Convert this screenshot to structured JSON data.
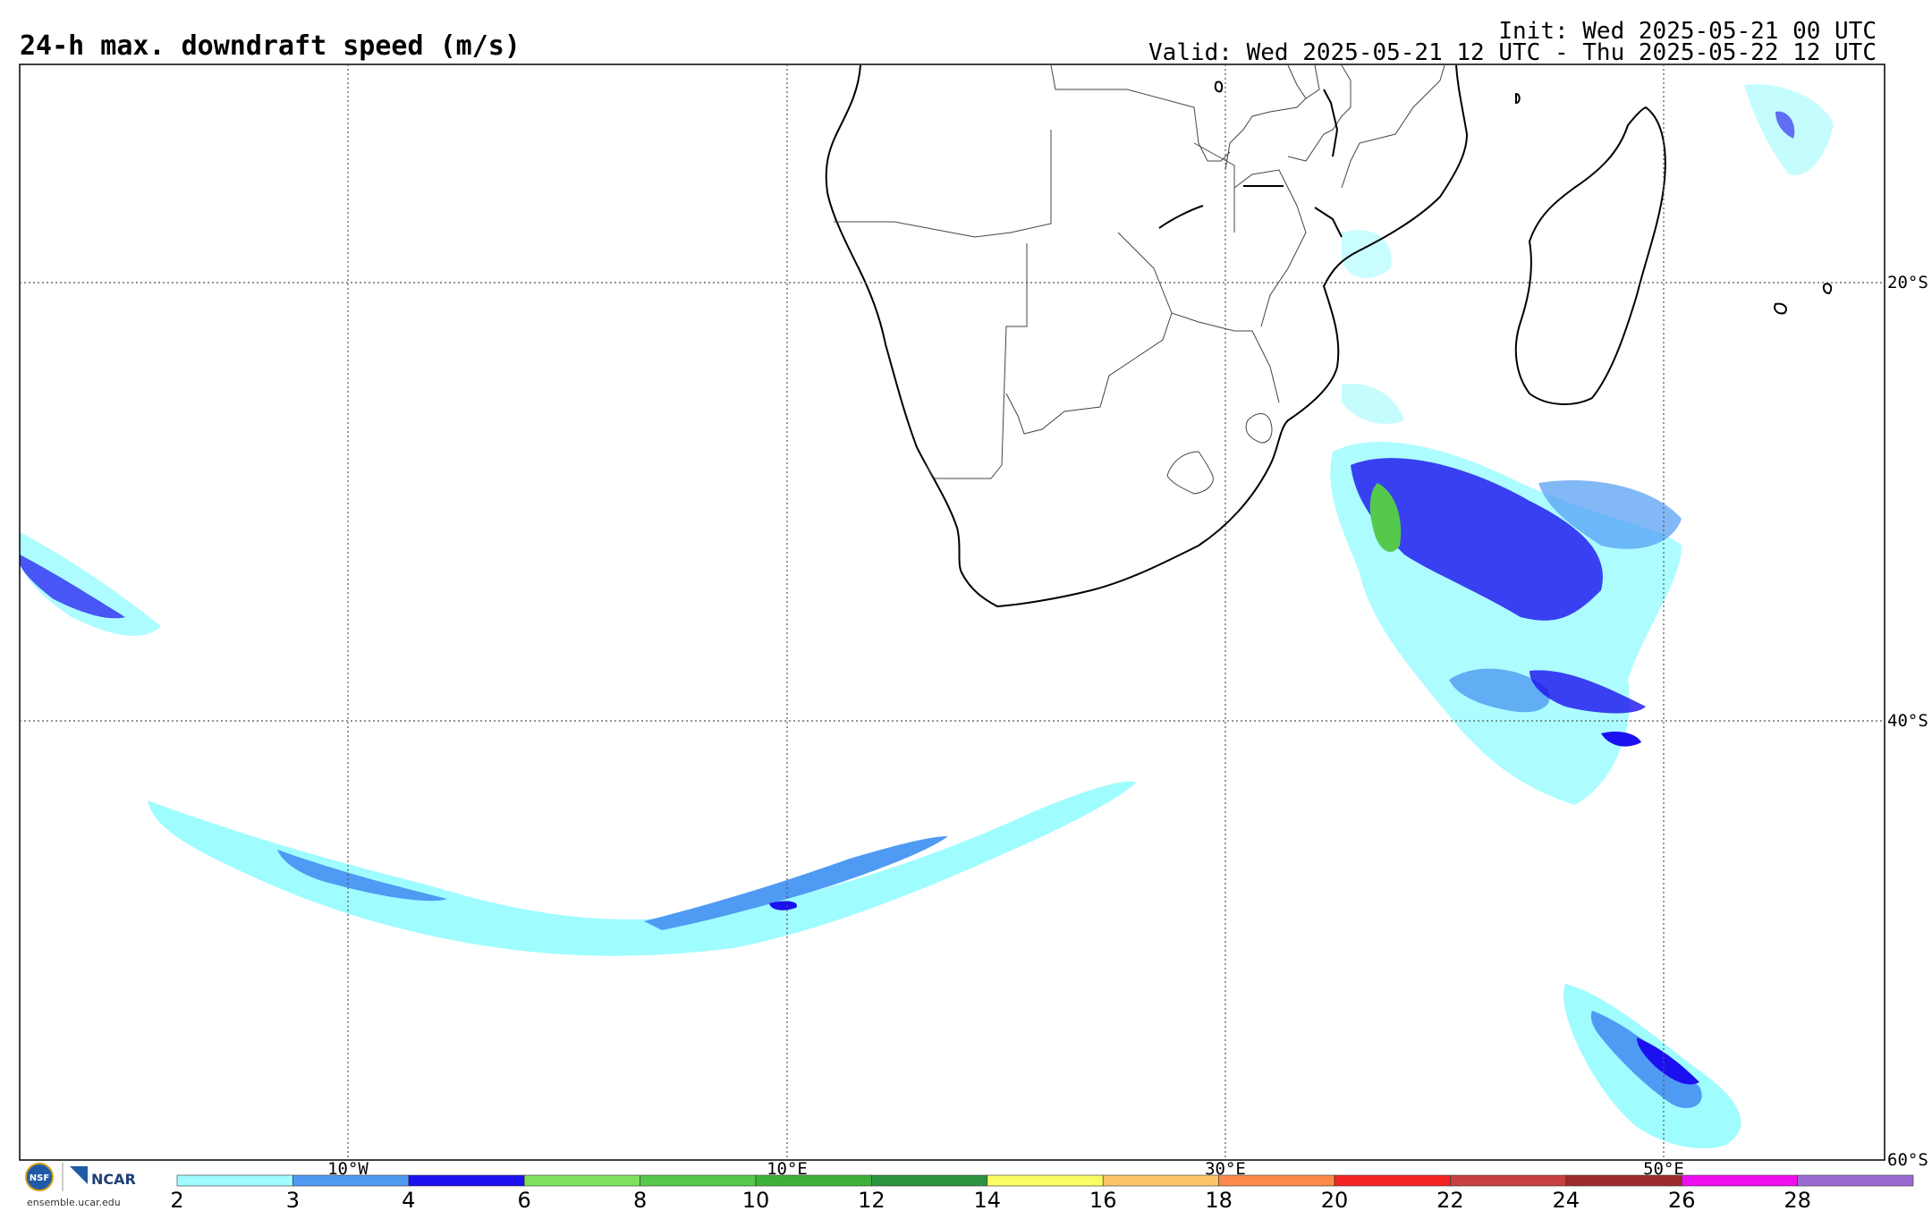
{
  "header": {
    "title": "24-h max. downdraft speed (m/s)",
    "init": "Init: Wed 2025-05-21 00 UTC",
    "valid": "Valid: Wed 2025-05-21 12 UTC - Thu 2025-05-22 12 UTC"
  },
  "map": {
    "lon_labels": [
      "10°W",
      "10°E",
      "30°E",
      "50°E"
    ],
    "lat_labels": [
      "20°S",
      "40°S",
      "60°S"
    ]
  },
  "colorbar": {
    "ticks": [
      "2",
      "3",
      "4",
      "6",
      "8",
      "10",
      "12",
      "14",
      "16",
      "18",
      "20",
      "22",
      "24",
      "26",
      "28"
    ],
    "colors": [
      "#9ffcff",
      "#4f9af3",
      "#1b10ef",
      "#7fe25c",
      "#55c94b",
      "#3eb13a",
      "#2b9440",
      "#fbfb63",
      "#fdc569",
      "#fc8a4a",
      "#f42424",
      "#c8403f",
      "#9e2b2b",
      "#ee0ef0",
      "#9b6bd1"
    ]
  },
  "logos": {
    "nsf_text": "NSF",
    "ncar_text": "NCAR",
    "url": "ensemble.ucar.edu"
  }
}
